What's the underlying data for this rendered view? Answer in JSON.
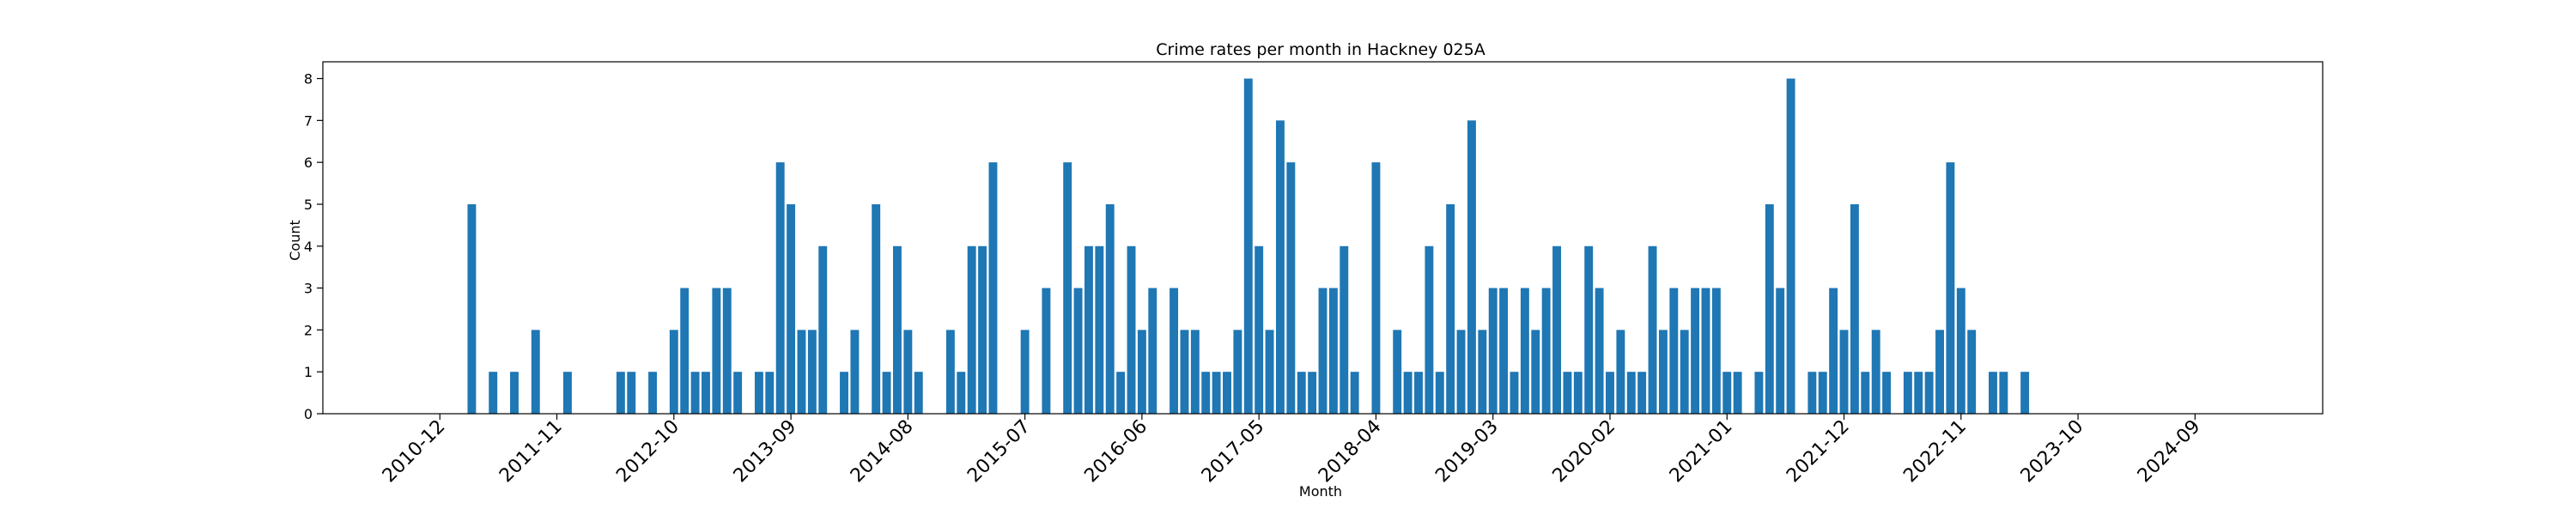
{
  "chart_data": {
    "type": "bar",
    "title": "Crime rates per month in Hackney 025A",
    "xlabel": "Month",
    "ylabel": "Count",
    "bar_color": "#1f77b4",
    "ylim": [
      0,
      8.4
    ],
    "xlim": [
      "2010-01",
      "2025-09"
    ],
    "y_ticks": [
      0,
      1,
      2,
      3,
      4,
      5,
      6,
      7,
      8
    ],
    "x_ticks": [
      "2010-12",
      "2011-11",
      "2012-10",
      "2013-09",
      "2014-08",
      "2015-07",
      "2016-06",
      "2017-05",
      "2018-04",
      "2019-03",
      "2020-02",
      "2021-01",
      "2021-12",
      "2022-11",
      "2023-10",
      "2024-09"
    ],
    "grid": false,
    "legend": "none",
    "x": [
      "2011-03",
      "2011-05",
      "2011-07",
      "2011-09",
      "2011-12",
      "2012-05",
      "2012-06",
      "2012-08",
      "2012-10",
      "2012-11",
      "2012-12",
      "2013-01",
      "2013-02",
      "2013-03",
      "2013-04",
      "2013-06",
      "2013-07",
      "2013-08",
      "2013-09",
      "2013-10",
      "2013-11",
      "2013-12",
      "2014-02",
      "2014-03",
      "2014-05",
      "2014-06",
      "2014-07",
      "2014-08",
      "2014-09",
      "2014-12",
      "2015-01",
      "2015-02",
      "2015-03",
      "2015-04",
      "2015-07",
      "2015-09",
      "2015-11",
      "2015-12",
      "2016-01",
      "2016-02",
      "2016-03",
      "2016-04",
      "2016-05",
      "2016-06",
      "2016-07",
      "2016-09",
      "2016-10",
      "2016-11",
      "2016-12",
      "2017-01",
      "2017-02",
      "2017-03",
      "2017-04",
      "2017-05",
      "2017-06",
      "2017-07",
      "2017-08",
      "2017-09",
      "2017-10",
      "2017-11",
      "2017-12",
      "2018-01",
      "2018-02",
      "2018-04",
      "2018-06",
      "2018-07",
      "2018-08",
      "2018-09",
      "2018-10",
      "2018-11",
      "2018-12",
      "2019-01",
      "2019-02",
      "2019-03",
      "2019-04",
      "2019-05",
      "2019-06",
      "2019-07",
      "2019-08",
      "2019-09",
      "2019-10",
      "2019-11",
      "2019-12",
      "2020-01",
      "2020-02",
      "2020-03",
      "2020-04",
      "2020-05",
      "2020-06",
      "2020-07",
      "2020-08",
      "2020-09",
      "2020-10",
      "2020-11",
      "2020-12",
      "2021-01",
      "2021-02",
      "2021-04",
      "2021-05",
      "2021-06",
      "2021-07",
      "2021-09",
      "2021-10",
      "2021-11",
      "2021-12",
      "2022-01",
      "2022-02",
      "2022-03",
      "2022-04",
      "2022-06",
      "2022-07",
      "2022-08",
      "2022-09",
      "2022-10",
      "2022-11",
      "2022-12",
      "2023-02",
      "2023-03",
      "2023-05"
    ],
    "values": [
      5,
      1,
      1,
      2,
      1,
      1,
      1,
      1,
      2,
      3,
      1,
      1,
      3,
      3,
      1,
      1,
      1,
      6,
      5,
      2,
      2,
      4,
      1,
      2,
      5,
      1,
      4,
      2,
      1,
      2,
      1,
      4,
      4,
      6,
      2,
      3,
      6,
      3,
      4,
      4,
      5,
      1,
      4,
      2,
      3,
      3,
      2,
      2,
      1,
      1,
      1,
      2,
      8,
      4,
      2,
      7,
      6,
      1,
      1,
      3,
      3,
      4,
      1,
      6,
      2,
      1,
      1,
      4,
      1,
      5,
      2,
      7,
      2,
      3,
      3,
      1,
      3,
      2,
      3,
      4,
      1,
      1,
      4,
      3,
      1,
      2,
      1,
      1,
      4,
      2,
      3,
      2,
      3,
      3,
      3,
      1,
      1,
      1,
      5,
      3,
      8,
      1,
      1,
      3,
      2,
      5,
      1,
      2,
      1,
      1,
      1,
      1,
      2,
      6,
      3,
      2,
      1,
      1,
      1
    ]
  }
}
